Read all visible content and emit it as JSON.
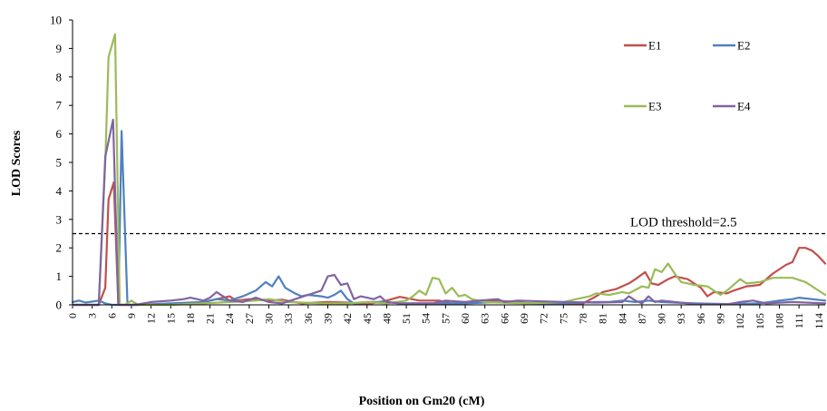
{
  "chart_data": {
    "type": "line",
    "title": "",
    "xlabel": "Position on Gm20 (cM)",
    "ylabel": "LOD  Scores",
    "ylim": [
      0,
      10
    ],
    "xlim": [
      0,
      115
    ],
    "yticks": [
      0,
      1,
      2,
      3,
      4,
      5,
      6,
      7,
      8,
      9,
      10
    ],
    "xticks": [
      0,
      3,
      6,
      9,
      12,
      15,
      18,
      21,
      24,
      27,
      30,
      33,
      36,
      39,
      42,
      45,
      48,
      51,
      54,
      57,
      60,
      63,
      66,
      69,
      72,
      75,
      78,
      81,
      84,
      87,
      90,
      93,
      96,
      99,
      102,
      105,
      108,
      111,
      114
    ],
    "grid": false,
    "legend_position": "top-right",
    "threshold": {
      "value": 2.5,
      "label": "LOD threshold=2.5",
      "style": "dashed"
    },
    "series": [
      {
        "name": "E1",
        "color": "#c0504d",
        "points": [
          [
            0,
            0
          ],
          [
            4,
            0
          ],
          [
            5,
            0.6
          ],
          [
            5.5,
            3.7
          ],
          [
            6.3,
            4.3
          ],
          [
            7,
            0
          ],
          [
            10,
            0
          ],
          [
            15,
            0.02
          ],
          [
            20,
            0.1
          ],
          [
            24,
            0.3
          ],
          [
            25,
            0.15
          ],
          [
            27,
            0.2
          ],
          [
            30,
            0.15
          ],
          [
            32,
            0.18
          ],
          [
            35,
            0.05
          ],
          [
            39,
            0.1
          ],
          [
            42,
            0.08
          ],
          [
            45,
            0.02
          ],
          [
            48,
            0.15
          ],
          [
            50,
            0.28
          ],
          [
            53,
            0.15
          ],
          [
            56,
            0.15
          ],
          [
            58,
            0.05
          ],
          [
            61,
            0.12
          ],
          [
            65,
            0.15
          ],
          [
            70,
            0.05
          ],
          [
            75,
            0.03
          ],
          [
            78,
            0.05
          ],
          [
            80,
            0.3
          ],
          [
            81,
            0.45
          ],
          [
            83,
            0.55
          ],
          [
            85,
            0.75
          ],
          [
            86,
            0.9
          ],
          [
            87.5,
            1.15
          ],
          [
            88.5,
            0.75
          ],
          [
            89.5,
            0.7
          ],
          [
            91,
            0.9
          ],
          [
            92,
            1.0
          ],
          [
            94,
            0.9
          ],
          [
            96,
            0.6
          ],
          [
            97,
            0.3
          ],
          [
            98,
            0.45
          ],
          [
            100,
            0.4
          ],
          [
            101,
            0.5
          ],
          [
            103,
            0.65
          ],
          [
            105,
            0.7
          ],
          [
            107,
            1.1
          ],
          [
            109,
            1.4
          ],
          [
            110,
            1.5
          ],
          [
            111,
            2.0
          ],
          [
            112,
            2.0
          ],
          [
            113,
            1.9
          ],
          [
            114,
            1.7
          ],
          [
            115,
            1.45
          ]
        ]
      },
      {
        "name": "E2",
        "color": "#4f81bd",
        "points": [
          [
            0,
            0.1
          ],
          [
            1,
            0.15
          ],
          [
            2,
            0.08
          ],
          [
            4,
            0.15
          ],
          [
            5,
            0.05
          ],
          [
            6,
            0
          ],
          [
            7,
            0
          ],
          [
            7.5,
            6.1
          ],
          [
            8.4,
            0
          ],
          [
            10,
            0
          ],
          [
            15,
            0.05
          ],
          [
            20,
            0.1
          ],
          [
            22,
            0.2
          ],
          [
            24,
            0.15
          ],
          [
            26,
            0.3
          ],
          [
            28,
            0.5
          ],
          [
            29.5,
            0.8
          ],
          [
            30.5,
            0.65
          ],
          [
            31.5,
            1.0
          ],
          [
            32.5,
            0.6
          ],
          [
            34,
            0.4
          ],
          [
            35,
            0.3
          ],
          [
            36,
            0.35
          ],
          [
            38,
            0.3
          ],
          [
            39,
            0.25
          ],
          [
            40,
            0.35
          ],
          [
            41,
            0.5
          ],
          [
            42,
            0.2
          ],
          [
            43,
            0.05
          ],
          [
            45,
            0.1
          ],
          [
            48,
            0.1
          ],
          [
            50,
            0.05
          ],
          [
            55,
            0.05
          ],
          [
            60,
            0.05
          ],
          [
            65,
            0.1
          ],
          [
            70,
            0.05
          ],
          [
            75,
            0.05
          ],
          [
            80,
            0.1
          ],
          [
            82,
            0.1
          ],
          [
            84,
            0.15
          ],
          [
            86,
            0.1
          ],
          [
            88,
            0.15
          ],
          [
            90,
            0.1
          ],
          [
            95,
            0.05
          ],
          [
            100,
            0.03
          ],
          [
            105,
            0.05
          ],
          [
            108,
            0.15
          ],
          [
            110,
            0.2
          ],
          [
            111,
            0.25
          ],
          [
            115,
            0.15
          ]
        ]
      },
      {
        "name": "E3",
        "color": "#9bbb59",
        "points": [
          [
            0,
            0
          ],
          [
            4,
            0
          ],
          [
            5,
            5.0
          ],
          [
            5.5,
            8.7
          ],
          [
            6.5,
            9.5
          ],
          [
            7.2,
            0
          ],
          [
            8,
            0
          ],
          [
            9,
            0.15
          ],
          [
            10,
            0
          ],
          [
            15,
            0
          ],
          [
            20,
            0.05
          ],
          [
            24,
            0.1
          ],
          [
            28,
            0.15
          ],
          [
            30,
            0.2
          ],
          [
            33,
            0.1
          ],
          [
            38,
            0.05
          ],
          [
            42,
            0.05
          ],
          [
            45,
            0.1
          ],
          [
            48,
            0.05
          ],
          [
            51,
            0.15
          ],
          [
            52,
            0.3
          ],
          [
            53,
            0.5
          ],
          [
            54,
            0.35
          ],
          [
            55,
            0.95
          ],
          [
            56,
            0.9
          ],
          [
            57,
            0.4
          ],
          [
            58,
            0.6
          ],
          [
            59,
            0.3
          ],
          [
            60,
            0.35
          ],
          [
            61,
            0.2
          ],
          [
            63,
            0.1
          ],
          [
            65,
            0.08
          ],
          [
            70,
            0.05
          ],
          [
            75,
            0.1
          ],
          [
            77,
            0.2
          ],
          [
            79,
            0.3
          ],
          [
            80,
            0.4
          ],
          [
            82,
            0.35
          ],
          [
            84,
            0.45
          ],
          [
            85,
            0.4
          ],
          [
            87,
            0.65
          ],
          [
            88,
            0.6
          ],
          [
            89,
            1.25
          ],
          [
            90,
            1.15
          ],
          [
            91,
            1.45
          ],
          [
            92,
            1.1
          ],
          [
            93,
            0.8
          ],
          [
            95,
            0.7
          ],
          [
            97,
            0.65
          ],
          [
            99,
            0.35
          ],
          [
            100,
            0.5
          ],
          [
            101,
            0.7
          ],
          [
            102,
            0.9
          ],
          [
            103,
            0.75
          ],
          [
            105,
            0.8
          ],
          [
            107,
            0.95
          ],
          [
            110,
            0.95
          ],
          [
            112,
            0.8
          ],
          [
            115,
            0.35
          ]
        ]
      },
      {
        "name": "E4",
        "color": "#8064a2",
        "points": [
          [
            0,
            0
          ],
          [
            4,
            0
          ],
          [
            5,
            5.2
          ],
          [
            6.2,
            6.5
          ],
          [
            7,
            0
          ],
          [
            9,
            0
          ],
          [
            10,
            0.02
          ],
          [
            12,
            0.1
          ],
          [
            15,
            0.15
          ],
          [
            17,
            0.2
          ],
          [
            18,
            0.25
          ],
          [
            20,
            0.15
          ],
          [
            21,
            0.25
          ],
          [
            22,
            0.45
          ],
          [
            23,
            0.3
          ],
          [
            24,
            0.15
          ],
          [
            26,
            0.1
          ],
          [
            28,
            0.25
          ],
          [
            30,
            0.1
          ],
          [
            32,
            0.05
          ],
          [
            34,
            0.2
          ],
          [
            36,
            0.35
          ],
          [
            38,
            0.5
          ],
          [
            39,
            1.0
          ],
          [
            40,
            1.05
          ],
          [
            41,
            0.7
          ],
          [
            42,
            0.75
          ],
          [
            43,
            0.2
          ],
          [
            44,
            0.3
          ],
          [
            45,
            0.25
          ],
          [
            46,
            0.2
          ],
          [
            47,
            0.3
          ],
          [
            48,
            0.1
          ],
          [
            50,
            0.05
          ],
          [
            55,
            0.05
          ],
          [
            57,
            0.15
          ],
          [
            60,
            0.1
          ],
          [
            62,
            0.15
          ],
          [
            65,
            0.2
          ],
          [
            66,
            0.1
          ],
          [
            68,
            0.15
          ],
          [
            75,
            0.1
          ],
          [
            80,
            0.08
          ],
          [
            84,
            0.1
          ],
          [
            85,
            0.3
          ],
          [
            86,
            0.15
          ],
          [
            87,
            0.05
          ],
          [
            88,
            0.3
          ],
          [
            89,
            0.1
          ],
          [
            90,
            0.15
          ],
          [
            92,
            0.1
          ],
          [
            95,
            0.03
          ],
          [
            100,
            0.02
          ],
          [
            102,
            0.1
          ],
          [
            104,
            0.15
          ],
          [
            106,
            0.05
          ],
          [
            110,
            0.1
          ],
          [
            115,
            0.05
          ]
        ]
      }
    ]
  }
}
